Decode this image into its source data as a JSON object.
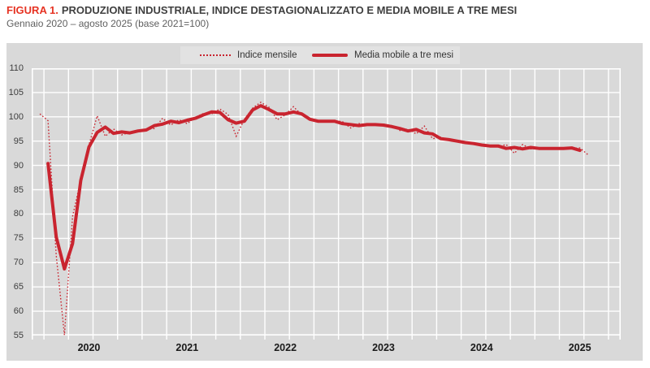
{
  "figure": {
    "label": "FIGURA 1.",
    "title": "PRODUZIONE INDUSTRIALE, INDICE DESTAGIONALIZZATO E MEDIA MOBILE A TRE MESI",
    "subtitle": "Gennaio 2020 – agosto 2025 (base 2021=100)"
  },
  "colors": {
    "series_red": "#c9242f",
    "title_red": "#e63323",
    "panel_gray": "#d9d9d9",
    "legend_gray": "#e2e2e2",
    "gridline": "#ffffff"
  },
  "chart_data": {
    "type": "line",
    "title": "FIGURA 1. PRODUZIONE INDUSTRIALE, INDICE DESTAGIONALIZZATO E MEDIA MOBILE A TRE MESI",
    "subtitle": "Gennaio 2020 – agosto 2025 (base 2021=100)",
    "x_start": "2020-01",
    "x_end": "2025-08",
    "x_axis_domain": [
      "2019-12",
      "2025-12"
    ],
    "xticks": [
      "2020",
      "2021",
      "2022",
      "2023",
      "2024",
      "2025"
    ],
    "ylim": [
      55,
      110
    ],
    "yticks": [
      55,
      60,
      65,
      70,
      75,
      80,
      85,
      90,
      95,
      100,
      105,
      110
    ],
    "grid": true,
    "legend_position": "top-center",
    "series": [
      {
        "name": "Indice mensile",
        "style": "dotted",
        "start_month_offset": 0,
        "values": [
          100.6,
          99.2,
          71.5,
          55.1,
          79.5,
          87.0,
          94.2,
          100.2,
          96.0,
          97.5,
          96.3,
          96.8,
          97.0,
          97.4,
          97.6,
          99.7,
          98.3,
          99.4,
          98.6,
          99.9,
          100.7,
          100.6,
          101.6,
          100.5,
          96.0,
          99.5,
          101.8,
          103.0,
          102.0,
          99.4,
          100.4,
          102.1,
          100.4,
          99.3,
          98.9,
          99.2,
          99.2,
          99.0,
          97.7,
          98.6,
          98.4,
          98.3,
          98.5,
          98.2,
          97.2,
          97.5,
          96.5,
          98.1,
          95.5,
          95.8,
          95.2,
          95.0,
          94.7,
          94.4,
          94.3,
          94.0,
          93.8,
          94.3,
          92.5,
          94.3,
          93.4,
          93.5,
          93.6,
          93.4,
          93.6,
          93.5,
          93.6,
          92.2
        ]
      },
      {
        "name": "Media mobile a tre mesi",
        "style": "solid-thick",
        "start_month_offset": 1,
        "values": [
          90.4,
          75.3,
          68.7,
          73.9,
          86.9,
          93.8,
          96.8,
          97.9,
          96.6,
          96.9,
          96.7,
          97.1,
          97.3,
          98.2,
          98.5,
          99.1,
          98.8,
          99.3,
          99.7,
          100.4,
          101.0,
          100.9,
          99.4,
          98.7,
          99.1,
          101.4,
          102.3,
          101.5,
          100.6,
          100.6,
          101.0,
          100.6,
          99.5,
          99.1,
          99.1,
          99.1,
          98.6,
          98.4,
          98.2,
          98.4,
          98.4,
          98.3,
          98.0,
          97.6,
          97.1,
          97.4,
          96.7,
          96.5,
          95.5,
          95.3,
          95.0,
          94.7,
          94.5,
          94.2,
          94.0,
          94.0,
          93.5,
          93.7,
          93.4,
          93.7,
          93.5,
          93.5,
          93.5,
          93.5,
          93.6,
          93.1
        ]
      }
    ]
  }
}
